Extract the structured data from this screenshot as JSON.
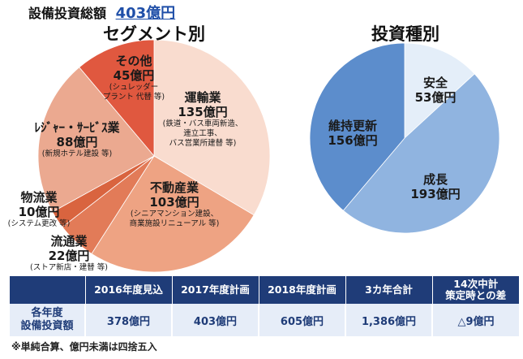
{
  "header": {
    "title": "設備投資総額",
    "total": "403億円"
  },
  "chart_data": [
    {
      "type": "pie",
      "title": "セグメント別",
      "categories": [
        "運輸業",
        "不動産業",
        "流通業",
        "物流業",
        "ﾚｼﾞｬｰ・ｻｰﾋﾞｽ業",
        "その他"
      ],
      "values": [
        135,
        103,
        22,
        10,
        88,
        45
      ],
      "value_labels": [
        "135億円",
        "103億円",
        "22億円",
        "10億円",
        "88億円",
        "45億円"
      ],
      "notes": [
        "(鉄道・バス車両新造、\n連立工事、\nバス営業所建替 等)",
        "(シニアマンション建設、\n商業施設リニューアル 等)",
        "(ストア新店・建替 等)",
        "(システム更改 等)",
        "(新規ホテル建設 等)",
        "(シュレッダー\nプラント 代替 等)"
      ],
      "colors": [
        "#f9dccf",
        "#eea383",
        "#e27b58",
        "#d9643f",
        "#eba990",
        "#e0583f"
      ]
    },
    {
      "type": "pie",
      "title": "投資種別",
      "categories": [
        "安全",
        "成長",
        "維持更新"
      ],
      "values": [
        53,
        193,
        156
      ],
      "value_labels": [
        "53億円",
        "193億円",
        "156億円"
      ],
      "colors": [
        "#e4eef9",
        "#90b4e0",
        "#5c8dcc"
      ]
    }
  ],
  "table": {
    "columns": [
      "2016年度見込",
      "2017年度計画",
      "2018年度計画",
      "3カ年合計",
      "14次中計\n策定時との差"
    ],
    "row_label": "各年度\n設備投資額",
    "row": [
      "378億円",
      "403億円",
      "605億円",
      "1,386億円",
      "△9億円"
    ]
  },
  "note": "※単純合算、億円未満は四捨五入"
}
